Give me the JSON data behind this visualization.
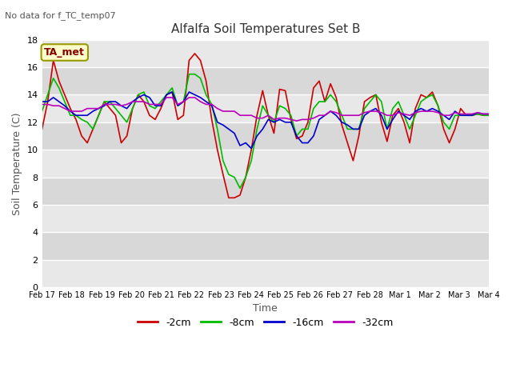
{
  "title": "Alfalfa Soil Temperatures Set B",
  "xlabel": "Time",
  "ylabel": "Soil Temperature (C)",
  "no_data_text": "No data for f_TC_temp07",
  "ta_met_label": "TA_met",
  "ylim": [
    0,
    18
  ],
  "yticks": [
    0,
    2,
    4,
    6,
    8,
    10,
    12,
    14,
    16,
    18
  ],
  "x_labels": [
    "Feb 17",
    "Feb 18",
    "Feb 19",
    "Feb 20",
    "Feb 21",
    "Feb 22",
    "Feb 23",
    "Feb 24",
    "Feb 25",
    "Feb 26",
    "Feb 27",
    "Feb 28",
    "Mar 1",
    "Mar 2",
    "Mar 3",
    "Mar 4"
  ],
  "colors": {
    "-2cm": "#cc0000",
    "-8cm": "#00bb00",
    "-16cm": "#0000cc",
    "-32cm": "#bb00bb"
  },
  "legend_labels": [
    "-2cm",
    "-8cm",
    "-16cm",
    "-32cm"
  ],
  "background_color": "#ffffff",
  "plot_bg_light": "#e8e8e8",
  "plot_bg_dark": "#d8d8d8",
  "grid_color": "#ffffff",
  "band_colors": [
    "#e8e8e8",
    "#d8d8d8"
  ],
  "series": {
    "-2cm": [
      11.5,
      13.5,
      16.5,
      15.0,
      14.0,
      13.0,
      12.2,
      11.0,
      10.5,
      11.5,
      12.5,
      13.5,
      13.0,
      12.5,
      10.5,
      11.0,
      13.0,
      14.0,
      13.5,
      12.5,
      12.2,
      13.0,
      14.0,
      14.2,
      12.2,
      12.5,
      16.5,
      17.0,
      16.5,
      15.0,
      12.2,
      10.0,
      8.2,
      6.5,
      6.5,
      6.7,
      8.0,
      10.0,
      12.5,
      14.3,
      12.5,
      11.2,
      14.4,
      14.3,
      12.2,
      10.8,
      11.0,
      12.0,
      14.5,
      15.0,
      13.5,
      14.8,
      13.8,
      11.8,
      10.5,
      9.2,
      11.0,
      13.5,
      13.8,
      14.0,
      12.0,
      10.6,
      12.5,
      13.0,
      12.0,
      10.5,
      13.0,
      14.0,
      13.8,
      14.2,
      13.2,
      11.5,
      10.5,
      11.5,
      13.0,
      12.5,
      12.5,
      12.6,
      12.5,
      12.5
    ],
    "-8cm": [
      12.8,
      14.0,
      15.2,
      14.5,
      13.5,
      12.5,
      12.5,
      12.2,
      12.0,
      11.5,
      12.5,
      13.5,
      13.5,
      13.0,
      12.5,
      12.0,
      13.0,
      14.0,
      14.2,
      13.2,
      13.0,
      13.5,
      14.0,
      14.5,
      13.2,
      13.5,
      15.5,
      15.5,
      15.2,
      14.0,
      13.3,
      11.5,
      9.2,
      8.2,
      8.0,
      7.2,
      8.0,
      9.2,
      11.5,
      13.2,
      12.5,
      12.0,
      13.2,
      13.0,
      12.5,
      11.0,
      11.5,
      11.5,
      13.0,
      13.5,
      13.5,
      14.0,
      13.5,
      12.5,
      11.5,
      11.5,
      11.5,
      13.0,
      13.5,
      14.0,
      13.5,
      11.5,
      13.0,
      13.5,
      12.5,
      11.5,
      12.5,
      13.5,
      13.8,
      14.0,
      13.2,
      12.0,
      11.5,
      12.5,
      12.5,
      12.5,
      12.5,
      12.6,
      12.5,
      12.5
    ],
    "-16cm": [
      13.5,
      13.5,
      13.8,
      13.5,
      13.2,
      12.8,
      12.5,
      12.5,
      12.5,
      12.8,
      13.0,
      13.2,
      13.5,
      13.5,
      13.2,
      13.0,
      13.5,
      13.8,
      14.0,
      13.8,
      13.2,
      13.2,
      14.0,
      14.2,
      13.2,
      13.5,
      14.2,
      14.0,
      13.8,
      13.5,
      13.2,
      12.0,
      11.8,
      11.5,
      11.2,
      10.3,
      10.5,
      10.1,
      11.0,
      11.5,
      12.2,
      12.0,
      12.2,
      12.0,
      12.0,
      11.0,
      10.5,
      10.5,
      11.0,
      12.2,
      12.5,
      12.8,
      12.5,
      12.0,
      11.8,
      11.5,
      11.5,
      12.5,
      12.8,
      13.0,
      12.5,
      11.5,
      12.2,
      12.8,
      12.5,
      12.2,
      12.8,
      13.0,
      12.8,
      13.0,
      12.8,
      12.5,
      12.2,
      12.8,
      12.5,
      12.5,
      12.5,
      12.7,
      12.6,
      12.6
    ],
    "-32cm": [
      13.3,
      13.3,
      13.2,
      13.2,
      13.0,
      12.8,
      12.8,
      12.8,
      13.0,
      13.0,
      13.0,
      13.3,
      13.3,
      13.3,
      13.2,
      13.3,
      13.5,
      13.5,
      13.5,
      13.3,
      13.3,
      13.3,
      13.8,
      13.8,
      13.3,
      13.5,
      13.8,
      13.8,
      13.5,
      13.3,
      13.3,
      13.0,
      12.8,
      12.8,
      12.8,
      12.5,
      12.5,
      12.5,
      12.3,
      12.3,
      12.5,
      12.2,
      12.3,
      12.3,
      12.2,
      12.1,
      12.2,
      12.2,
      12.3,
      12.5,
      12.5,
      12.8,
      12.7,
      12.5,
      12.5,
      12.5,
      12.5,
      12.7,
      12.8,
      12.8,
      12.7,
      12.5,
      12.5,
      12.7,
      12.6,
      12.5,
      12.7,
      12.8,
      12.8,
      12.8,
      12.7,
      12.5,
      12.5,
      12.7,
      12.6,
      12.6,
      12.6,
      12.7,
      12.6,
      12.6
    ]
  }
}
